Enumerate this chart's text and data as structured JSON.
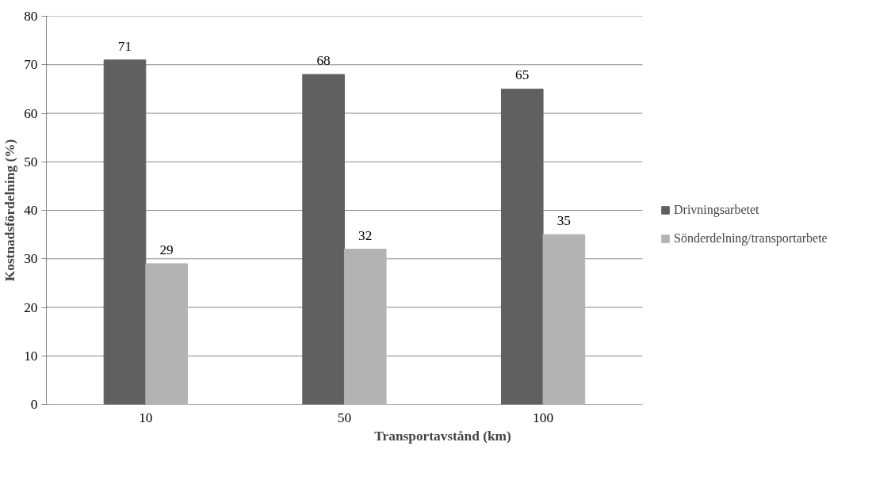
{
  "chart_data": {
    "type": "bar",
    "xlabel": "Transportavstånd (km)",
    "ylabel": "Kostnadsfördelning (%)",
    "categories": [
      "10",
      "50",
      "100"
    ],
    "series": [
      {
        "name": "Drivningsarbetet",
        "color": "#606060",
        "values": [
          71,
          68,
          65
        ]
      },
      {
        "name": "Sönderdelning/transportarbete",
        "color": "#b3b3b3",
        "values": [
          29,
          32,
          35
        ]
      }
    ],
    "ylim": [
      0,
      80
    ],
    "yticks": [
      0,
      10,
      20,
      30,
      40,
      50,
      60,
      70,
      80
    ],
    "grid": "y",
    "legend": "right",
    "data_labels": true
  }
}
